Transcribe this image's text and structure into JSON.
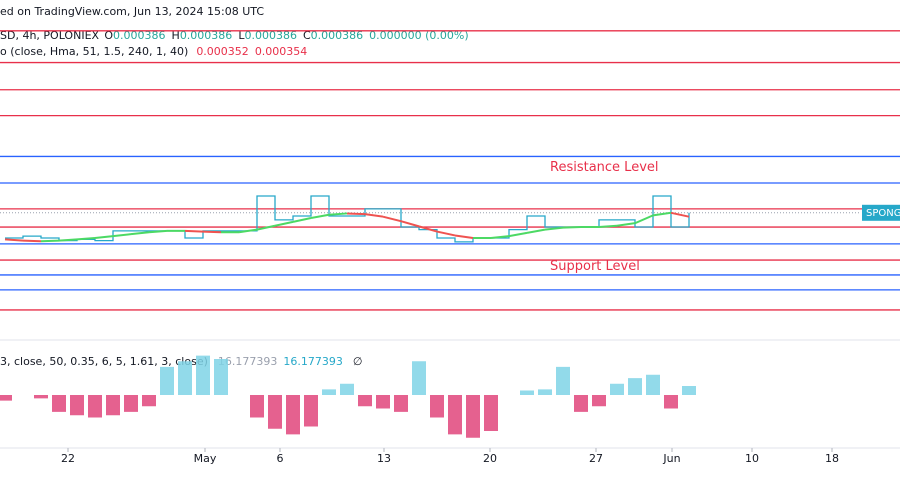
{
  "header": {
    "source": "ed on TradingView.com, Jun 13, 2024 15:08 UTC",
    "symbol": "SD, 4h, POLONIEX",
    "ohlc": [
      {
        "label": "O",
        "value": "0.000386"
      },
      {
        "label": "H",
        "value": "0.000386"
      },
      {
        "label": "L",
        "value": "0.000386"
      },
      {
        "label": "C",
        "value": "0.000386"
      }
    ],
    "change": "0.000000 (0.00%)",
    "indicator": "o (close, Hma, 51, 1.5, 240, 1, 40)",
    "indicator_values": [
      "0.000352",
      "0.000354"
    ],
    "oscillator": "3, close, 50, 0.35, 6, 5, 1.61, 3, close)",
    "oscillator_values": [
      "16.177393",
      "16.177393"
    ],
    "oscillator_icon": "∅"
  },
  "chart_data": {
    "type": "line",
    "ylim": [
      0.000205,
      0.000676
    ],
    "xlim": [
      0,
      45
    ],
    "xticks": [
      {
        "value": 3.4,
        "label": "22"
      },
      {
        "value": 10.25,
        "label": "May"
      },
      {
        "value": 14,
        "label": "6"
      },
      {
        "value": 19.2,
        "label": "13"
      },
      {
        "value": 24.5,
        "label": "20"
      },
      {
        "value": 29.8,
        "label": "27"
      },
      {
        "value": 33.6,
        "label": "Jun"
      },
      {
        "value": 37.6,
        "label": "10"
      },
      {
        "value": 41.6,
        "label": "18"
      }
    ],
    "levels": [
      {
        "value": 0.000667,
        "color": "#e8304a"
      },
      {
        "value": 0.000618,
        "color": "#e8304a"
      },
      {
        "value": 0.000576,
        "color": "#e8304a"
      },
      {
        "value": 0.000536,
        "color": "#e8304a"
      },
      {
        "value": 0.000473,
        "color": "#2962ff"
      },
      {
        "value": 0.000432,
        "color": "#2962ff"
      },
      {
        "value": 0.000392,
        "color": "#e8304a"
      },
      {
        "value": 0.000364,
        "color": "#e8304a"
      },
      {
        "value": 0.000338,
        "color": "#2962ff"
      },
      {
        "value": 0.000313,
        "color": "#e8304a"
      },
      {
        "value": 0.00029,
        "color": "#2962ff"
      },
      {
        "value": 0.000267,
        "color": "#2962ff"
      },
      {
        "value": 0.000236,
        "color": "#e8304a"
      }
    ],
    "annotations": [
      {
        "text": "Resistance Level",
        "x": 30,
        "value": 0.000456
      },
      {
        "text": "Support Level",
        "x": 30,
        "value": 0.000303
      }
    ],
    "price_label": {
      "text": "SPONG",
      "value": 0.000386,
      "color": "#26a8c9"
    },
    "price": {
      "color": "#26a8c9",
      "values": [
        0.000347,
        0.00035,
        0.000347,
        0.000343,
        0.000345,
        0.000343,
        0.000358,
        0.000358,
        0.000358,
        0.000358,
        0.000347,
        0.000358,
        0.000358,
        0.000358,
        0.000412,
        0.000375,
        0.000381,
        0.000412,
        0.000381,
        0.000381,
        0.000392,
        0.000392,
        0.000364,
        0.00036,
        0.000347,
        0.000341,
        0.000347,
        0.000347,
        0.00036,
        0.000381,
        0.000364,
        0.000364,
        0.000364,
        0.000375,
        0.000375,
        0.000364,
        0.000412,
        0.000364,
        0.000386
      ]
    },
    "hma": {
      "up_color": "#4cd964",
      "down_color": "#ef5350",
      "values": [
        0.000345,
        0.000343,
        0.000342,
        0.000343,
        0.000345,
        0.000347,
        0.00035,
        0.000353,
        0.000356,
        0.000358,
        0.000358,
        0.000357,
        0.000356,
        0.000356,
        0.00036,
        0.000366,
        0.000372,
        0.000378,
        0.000383,
        0.000385,
        0.000384,
        0.00038,
        0.000373,
        0.000365,
        0.000357,
        0.000351,
        0.000347,
        0.000347,
        0.00035,
        0.000355,
        0.00036,
        0.000363,
        0.000364,
        0.000364,
        0.000366,
        0.00037,
        0.000382,
        0.000386,
        0.00038
      ]
    },
    "oscillator": {
      "ylim": [
        -40,
        40
      ],
      "pos_color": "#7fd3e6",
      "neg_color": "#e0457b",
      "values": [
        -5,
        0,
        -3,
        -15,
        -18,
        -20,
        -18,
        -15,
        -10,
        25,
        30,
        35,
        32,
        0,
        -20,
        -30,
        -35,
        -28,
        5,
        10,
        -10,
        -12,
        -15,
        30,
        -20,
        -35,
        -38,
        -32,
        0,
        4,
        5,
        25,
        -15,
        -10,
        10,
        15,
        18,
        -12,
        8
      ]
    }
  }
}
